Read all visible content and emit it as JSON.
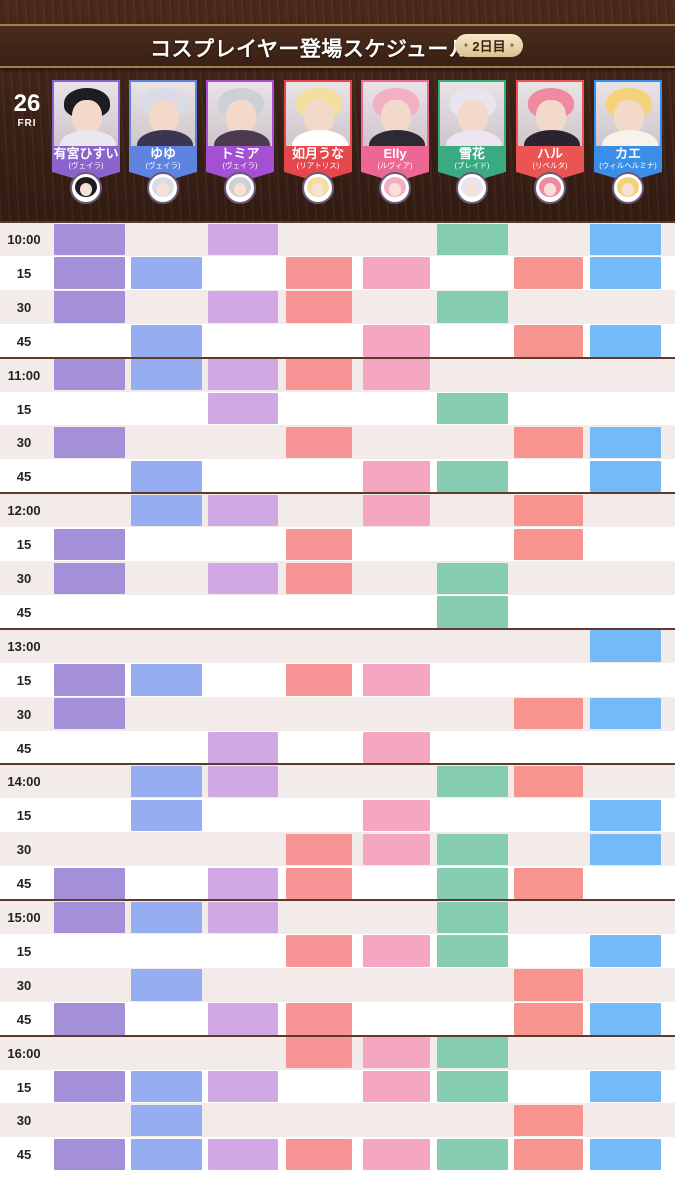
{
  "title": "コスプレイヤー登場スケジュール",
  "day_badge": "2日目",
  "date": {
    "day": "26",
    "weekday": "FRI"
  },
  "cosplayers": [
    {
      "name": "有宮ひすい",
      "character": "(ヴェイラ)",
      "color": "#8b63cc",
      "hair": "#1c1c22",
      "outfit": "#e8e8ee"
    },
    {
      "name": "ゆゆ",
      "character": "(ヴェイラ)",
      "color": "#5f84e0",
      "hair": "#d9dbe6",
      "outfit": "#3a3550"
    },
    {
      "name": "トミア",
      "character": "(ヴェイラ)",
      "color": "#a54fd3",
      "hair": "#cfcfd6",
      "outfit": "#4a3c4e"
    },
    {
      "name": "如月うな",
      "character": "(リアトリス)",
      "color": "#e5474b",
      "hair": "#f2dfa0",
      "outfit": "#ffffff"
    },
    {
      "name": "Elly",
      "character": "(ルヴィア)",
      "color": "#ee6794",
      "hair": "#f3b0c2",
      "outfit": "#2d2a33"
    },
    {
      "name": "雪花",
      "character": "(ブレイド)",
      "color": "#3aaa82",
      "hair": "#e9e4f0",
      "outfit": "#ece4ee"
    },
    {
      "name": "ハル",
      "character": "(リベルタ)",
      "color": "#ea5553",
      "hair": "#f08aa0",
      "outfit": "#2b2430"
    },
    {
      "name": "カエ",
      "character": "(ウィルヘルミナ)",
      "color": "#3a8ee8",
      "hair": "#f4d27a",
      "outfit": "#f7f3ea"
    }
  ],
  "cell_colors": [
    "#a390d9",
    "#97adf2",
    "#d0a8e4",
    "#f79495",
    "#f5a6c2",
    "#85ccb0",
    "#f8948f",
    "#74baf8"
  ],
  "times": [
    "10:00",
    "15",
    "30",
    "45",
    "11:00",
    "15",
    "30",
    "45",
    "12:00",
    "15",
    "30",
    "45",
    "13:00",
    "15",
    "30",
    "45",
    "14:00",
    "15",
    "30",
    "45",
    "15:00",
    "15",
    "30",
    "45",
    "16:00",
    "15",
    "30",
    "45"
  ],
  "schedule": [
    [
      1,
      0,
      1,
      0,
      0,
      1,
      0,
      1
    ],
    [
      1,
      1,
      0,
      1,
      1,
      0,
      1,
      1
    ],
    [
      1,
      0,
      1,
      1,
      0,
      1,
      0,
      0
    ],
    [
      0,
      1,
      0,
      0,
      1,
      0,
      1,
      1
    ],
    [
      1,
      1,
      1,
      1,
      1,
      0,
      0,
      0
    ],
    [
      0,
      0,
      1,
      0,
      0,
      1,
      0,
      0
    ],
    [
      1,
      0,
      0,
      1,
      0,
      0,
      1,
      1
    ],
    [
      0,
      1,
      0,
      0,
      1,
      1,
      0,
      1
    ],
    [
      0,
      1,
      1,
      0,
      1,
      0,
      1,
      0
    ],
    [
      1,
      0,
      0,
      1,
      0,
      0,
      1,
      0
    ],
    [
      1,
      0,
      1,
      1,
      0,
      1,
      0,
      0
    ],
    [
      0,
      0,
      0,
      0,
      0,
      1,
      0,
      0
    ],
    [
      0,
      0,
      0,
      0,
      0,
      0,
      0,
      1
    ],
    [
      1,
      1,
      0,
      1,
      1,
      0,
      0,
      0
    ],
    [
      1,
      0,
      0,
      0,
      0,
      0,
      1,
      1
    ],
    [
      0,
      0,
      1,
      0,
      1,
      0,
      0,
      0
    ],
    [
      0,
      1,
      1,
      0,
      0,
      1,
      1,
      0
    ],
    [
      0,
      1,
      0,
      0,
      1,
      0,
      0,
      1
    ],
    [
      0,
      0,
      0,
      1,
      1,
      1,
      0,
      1
    ],
    [
      1,
      0,
      1,
      1,
      0,
      1,
      1,
      0
    ],
    [
      1,
      1,
      1,
      0,
      0,
      1,
      0,
      0
    ],
    [
      0,
      0,
      0,
      1,
      1,
      1,
      0,
      1
    ],
    [
      0,
      1,
      0,
      0,
      0,
      0,
      1,
      0
    ],
    [
      1,
      0,
      1,
      1,
      0,
      0,
      1,
      1
    ],
    [
      0,
      0,
      0,
      1,
      1,
      1,
      0,
      0
    ],
    [
      1,
      1,
      1,
      0,
      1,
      1,
      0,
      1
    ],
    [
      0,
      1,
      0,
      0,
      0,
      0,
      1,
      0
    ],
    [
      1,
      1,
      1,
      1,
      1,
      1,
      1,
      1
    ]
  ]
}
